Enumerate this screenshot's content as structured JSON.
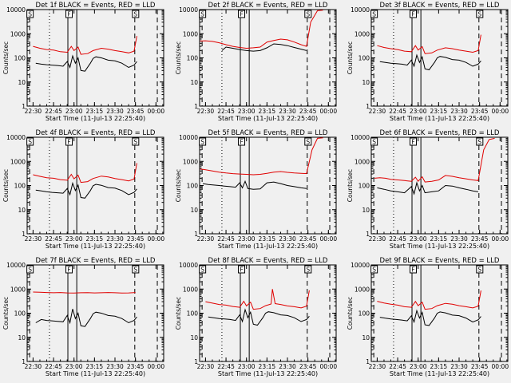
{
  "common": {
    "title_suffix": " BLACK = Events, RED = LLD",
    "xlabel": "Start Time (11-Jul-13 22:25:40)",
    "ylabel": "Counts/sec",
    "xticks": [
      "22:30",
      "22:45",
      "23:00",
      "23:15",
      "23:30",
      "23:45",
      "00:00"
    ],
    "yticks": [
      "1",
      "10",
      "100",
      "1000",
      "10000"
    ],
    "flags": {
      "start": "S",
      "middle": "F",
      "end": "S"
    },
    "colors": {
      "events": "#000000",
      "lld": "#e00000",
      "axes": "#000000",
      "background": "#f0f0f0"
    }
  },
  "chart_data": [
    {
      "type": "line",
      "title": "Det 1f BLACK = Events, RED = LLD",
      "xlabel": "Start Time (11-Jul-13 22:25:40)",
      "ylabel": "Counts/sec",
      "yscale": "log",
      "ylim": [
        1,
        10000
      ],
      "xlim": [
        "22:25:40",
        "00:05:40"
      ],
      "series": [
        {
          "name": "Events",
          "color": "#000000",
          "x": [
            "22:32",
            "22:36",
            "22:40",
            "22:44",
            "22:48",
            "22:52",
            "22:55",
            "22:57",
            "22:59",
            "23:01",
            "23:03",
            "23:05",
            "23:08",
            "23:12",
            "23:14",
            "23:16",
            "23:20",
            "23:25",
            "23:30",
            "23:35",
            "23:40",
            "23:44",
            "23:46"
          ],
          "values": [
            60,
            55,
            52,
            50,
            48,
            45,
            70,
            40,
            120,
            60,
            100,
            30,
            28,
            60,
            95,
            110,
            100,
            80,
            75,
            60,
            40,
            50,
            70
          ]
        },
        {
          "name": "LLD",
          "color": "#e00000",
          "x": [
            "22:30",
            "22:35",
            "22:40",
            "22:45",
            "22:50",
            "22:55",
            "22:58",
            "23:00",
            "23:03",
            "23:05",
            "23:10",
            "23:14",
            "23:20",
            "23:25",
            "23:30",
            "23:35",
            "23:40",
            "23:44",
            "23:46"
          ],
          "values": [
            300,
            250,
            220,
            210,
            180,
            170,
            300,
            200,
            280,
            140,
            150,
            200,
            250,
            230,
            200,
            180,
            160,
            190,
            800
          ]
        }
      ]
    },
    {
      "type": "line",
      "title": "Det 2f BLACK = Events, RED = LLD",
      "xlabel": "Start Time (11-Jul-13 22:25:40)",
      "ylabel": "Counts/sec",
      "yscale": "log",
      "ylim": [
        1,
        10000
      ],
      "xlim": [
        "22:25:40",
        "00:05:40"
      ],
      "series": [
        {
          "name": "Events",
          "color": "#000000",
          "x": [
            "22:42",
            "22:45",
            "22:50",
            "22:55",
            "23:00",
            "23:05",
            "23:10",
            "23:15",
            "23:20",
            "23:25",
            "23:30",
            "23:35",
            "23:40",
            "23:44"
          ],
          "values": [
            200,
            280,
            250,
            220,
            200,
            190,
            200,
            260,
            380,
            360,
            320,
            270,
            230,
            200
          ]
        },
        {
          "name": "LLD",
          "color": "#e00000",
          "x": [
            "22:26",
            "22:30",
            "22:35",
            "22:40",
            "22:45",
            "22:50",
            "22:55",
            "23:00",
            "23:05",
            "23:10",
            "23:15",
            "23:20",
            "23:25",
            "23:30",
            "23:35",
            "23:40",
            "23:44",
            "23:47",
            "23:52",
            "23:56"
          ],
          "values": [
            500,
            510,
            480,
            420,
            350,
            300,
            270,
            250,
            260,
            280,
            450,
            520,
            600,
            560,
            450,
            350,
            300,
            3000,
            9000,
            9500
          ]
        }
      ]
    },
    {
      "type": "line",
      "title": "Det 3f BLACK = Events, RED = LLD",
      "xlabel": "Start Time (11-Jul-13 22:25:40)",
      "ylabel": "Counts/sec",
      "yscale": "log",
      "ylim": [
        1,
        10000
      ],
      "xlim": [
        "22:25:40",
        "00:05:40"
      ],
      "series": [
        {
          "name": "Events",
          "color": "#000000",
          "x": [
            "22:32",
            "22:36",
            "22:40",
            "22:44",
            "22:48",
            "22:52",
            "22:55",
            "22:57",
            "22:59",
            "23:01",
            "23:03",
            "23:05",
            "23:08",
            "23:12",
            "23:14",
            "23:16",
            "23:20",
            "23:25",
            "23:30",
            "23:35",
            "23:40",
            "23:44",
            "23:46"
          ],
          "values": [
            70,
            65,
            60,
            58,
            55,
            50,
            80,
            45,
            130,
            65,
            110,
            35,
            32,
            65,
            100,
            115,
            105,
            85,
            80,
            65,
            45,
            55,
            75
          ]
        },
        {
          "name": "LLD",
          "color": "#e00000",
          "x": [
            "22:30",
            "22:35",
            "22:40",
            "22:45",
            "22:50",
            "22:55",
            "22:58",
            "23:00",
            "23:03",
            "23:05",
            "23:10",
            "23:14",
            "23:20",
            "23:25",
            "23:30",
            "23:35",
            "23:40",
            "23:44",
            "23:46"
          ],
          "values": [
            320,
            270,
            240,
            220,
            190,
            180,
            320,
            210,
            290,
            150,
            160,
            210,
            260,
            240,
            210,
            190,
            170,
            200,
            900
          ]
        }
      ]
    },
    {
      "type": "line",
      "title": "Det 4f BLACK = Events, RED = LLD",
      "xlabel": "Start Time (11-Jul-13 22:25:40)",
      "ylabel": "Counts/sec",
      "yscale": "log",
      "ylim": [
        1,
        10000
      ],
      "xlim": [
        "22:25:40",
        "00:05:40"
      ],
      "series": [
        {
          "name": "Events",
          "color": "#000000",
          "x": [
            "22:32",
            "22:36",
            "22:40",
            "22:44",
            "22:48",
            "22:52",
            "22:55",
            "22:57",
            "22:59",
            "23:01",
            "23:03",
            "23:05",
            "23:08",
            "23:12",
            "23:14",
            "23:16",
            "23:20",
            "23:25",
            "23:30",
            "23:35",
            "23:40",
            "23:44",
            "23:46"
          ],
          "values": [
            65,
            60,
            55,
            52,
            50,
            48,
            75,
            42,
            125,
            62,
            105,
            32,
            30,
            62,
            98,
            112,
            102,
            82,
            78,
            62,
            42,
            52,
            72
          ]
        },
        {
          "name": "LLD",
          "color": "#e00000",
          "x": [
            "22:30",
            "22:35",
            "22:40",
            "22:45",
            "22:50",
            "22:55",
            "22:58",
            "23:00",
            "23:03",
            "23:05",
            "23:10",
            "23:14",
            "23:20",
            "23:25",
            "23:30",
            "23:35",
            "23:40",
            "23:44",
            "23:46"
          ],
          "values": [
            280,
            240,
            210,
            200,
            175,
            165,
            290,
            190,
            270,
            135,
            145,
            195,
            245,
            225,
            195,
            175,
            155,
            185,
            850
          ]
        }
      ]
    },
    {
      "type": "line",
      "title": "Det 5f BLACK = Events, RED = LLD",
      "xlabel": "Start Time (11-Jul-13 22:25:40)",
      "ylabel": "Counts/sec",
      "yscale": "log",
      "ylim": [
        1,
        10000
      ],
      "xlim": [
        "22:25:40",
        "00:05:40"
      ],
      "series": [
        {
          "name": "Events",
          "color": "#000000",
          "x": [
            "22:28",
            "22:32",
            "22:36",
            "22:40",
            "22:44",
            "22:48",
            "22:52",
            "22:55",
            "22:57",
            "22:59",
            "23:01",
            "23:05",
            "23:10",
            "23:15",
            "23:20",
            "23:25",
            "23:30",
            "23:35",
            "23:40",
            "23:44"
          ],
          "values": [
            120,
            110,
            105,
            100,
            95,
            90,
            85,
            130,
            80,
            150,
            75,
            70,
            72,
            130,
            140,
            120,
            100,
            90,
            80,
            75
          ]
        },
        {
          "name": "LLD",
          "color": "#e00000",
          "x": [
            "22:26",
            "22:30",
            "22:35",
            "22:40",
            "22:45",
            "22:50",
            "22:55",
            "23:00",
            "23:05",
            "23:10",
            "23:15",
            "23:20",
            "23:25",
            "23:30",
            "23:35",
            "23:40",
            "23:44",
            "23:48",
            "23:52",
            "23:56"
          ],
          "values": [
            480,
            450,
            400,
            360,
            330,
            310,
            300,
            290,
            280,
            290,
            320,
            360,
            380,
            350,
            330,
            320,
            310,
            3000,
            9000,
            9500
          ]
        }
      ]
    },
    {
      "type": "line",
      "title": "Det 6f BLACK = Events, RED = LLD",
      "xlabel": "Start Time (11-Jul-13 22:25:40)",
      "ylabel": "Counts/sec",
      "yscale": "log",
      "ylim": [
        1,
        10000
      ],
      "xlim": [
        "22:25:40",
        "00:05:40"
      ],
      "series": [
        {
          "name": "Events",
          "color": "#000000",
          "x": [
            "22:30",
            "22:35",
            "22:40",
            "22:45",
            "22:50",
            "22:55",
            "22:57",
            "22:59",
            "23:01",
            "23:03",
            "23:05",
            "23:10",
            "23:15",
            "23:20",
            "23:25",
            "23:30",
            "23:35",
            "23:40",
            "23:44"
          ],
          "values": [
            80,
            70,
            60,
            55,
            50,
            90,
            45,
            130,
            60,
            100,
            50,
            55,
            60,
            100,
            95,
            80,
            70,
            60,
            55
          ]
        },
        {
          "name": "LLD",
          "color": "#e00000",
          "x": [
            "22:28",
            "22:32",
            "22:36",
            "22:40",
            "22:45",
            "22:50",
            "22:55",
            "22:58",
            "23:00",
            "23:03",
            "23:05",
            "23:10",
            "23:15",
            "23:20",
            "23:25",
            "23:30",
            "23:35",
            "23:40",
            "23:44",
            "23:48",
            "23:52",
            "23:56"
          ],
          "values": [
            200,
            210,
            200,
            180,
            170,
            160,
            150,
            220,
            150,
            230,
            140,
            150,
            170,
            260,
            240,
            210,
            190,
            170,
            160,
            3000,
            8000,
            9000
          ]
        }
      ]
    },
    {
      "type": "line",
      "title": "Det 7f BLACK = Events, RED = LLD",
      "xlabel": "Start Time (11-Jul-13 22:25:40)",
      "ylabel": "Counts/sec",
      "yscale": "log",
      "ylim": [
        1,
        10000
      ],
      "xlim": [
        "22:25:40",
        "00:05:40"
      ],
      "series": [
        {
          "name": "Events",
          "color": "#000000",
          "x": [
            "22:32",
            "22:36",
            "22:40",
            "22:44",
            "22:48",
            "22:52",
            "22:55",
            "22:57",
            "22:59",
            "23:01",
            "23:03",
            "23:05",
            "23:08",
            "23:12",
            "23:14",
            "23:16",
            "23:20",
            "23:25",
            "23:30",
            "23:35",
            "23:40",
            "23:44",
            "23:46"
          ],
          "values": [
            40,
            55,
            50,
            48,
            46,
            44,
            80,
            40,
            150,
            60,
            100,
            30,
            28,
            60,
            95,
            110,
            100,
            80,
            75,
            60,
            40,
            50,
            70
          ]
        },
        {
          "name": "LLD",
          "color": "#e00000",
          "x": [
            "22:30",
            "22:35",
            "22:40",
            "22:45",
            "22:50",
            "22:55",
            "23:00",
            "23:05",
            "23:10",
            "23:15",
            "23:20",
            "23:25",
            "23:30",
            "23:35",
            "23:40",
            "23:45"
          ],
          "values": [
            750,
            740,
            720,
            700,
            720,
            690,
            680,
            700,
            710,
            690,
            700,
            720,
            700,
            680,
            690,
            720
          ]
        }
      ]
    },
    {
      "type": "line",
      "title": "Det 8f BLACK = Events, RED = LLD",
      "xlabel": "Start Time (11-Jul-13 22:25:40)",
      "ylabel": "Counts/sec",
      "yscale": "log",
      "ylim": [
        1,
        10000
      ],
      "xlim": [
        "22:25:40",
        "00:05:40"
      ],
      "series": [
        {
          "name": "Events",
          "color": "#000000",
          "x": [
            "22:32",
            "22:36",
            "22:40",
            "22:44",
            "22:48",
            "22:52",
            "22:55",
            "22:57",
            "22:59",
            "23:01",
            "23:03",
            "23:05",
            "23:08",
            "23:12",
            "23:14",
            "23:16",
            "23:20",
            "23:25",
            "23:30",
            "23:35",
            "23:40",
            "23:44",
            "23:46"
          ],
          "values": [
            70,
            65,
            60,
            58,
            55,
            50,
            85,
            45,
            140,
            65,
            110,
            35,
            32,
            65,
            100,
            115,
            105,
            85,
            80,
            65,
            45,
            55,
            75
          ]
        },
        {
          "name": "LLD",
          "color": "#e00000",
          "x": [
            "22:30",
            "22:35",
            "22:40",
            "22:45",
            "22:50",
            "22:55",
            "22:58",
            "23:00",
            "23:03",
            "23:05",
            "23:10",
            "23:14",
            "23:18",
            "23:19",
            "23:21",
            "23:25",
            "23:30",
            "23:35",
            "23:40",
            "23:44",
            "23:46"
          ],
          "values": [
            300,
            260,
            230,
            215,
            190,
            175,
            310,
            200,
            285,
            145,
            155,
            205,
            240,
            1000,
            250,
            230,
            200,
            185,
            165,
            195,
            880
          ]
        }
      ]
    },
    {
      "type": "line",
      "title": "Det 9f BLACK = Events, RED = LLD",
      "xlabel": "Start Time (11-Jul-13 22:25:40)",
      "ylabel": "Counts/sec",
      "yscale": "log",
      "ylim": [
        1,
        10000
      ],
      "xlim": [
        "22:25:40",
        "00:05:40"
      ],
      "series": [
        {
          "name": "Events",
          "color": "#000000",
          "x": [
            "22:32",
            "22:36",
            "22:40",
            "22:44",
            "22:48",
            "22:52",
            "22:55",
            "22:57",
            "22:59",
            "23:01",
            "23:03",
            "23:05",
            "23:08",
            "23:12",
            "23:14",
            "23:16",
            "23:20",
            "23:25",
            "23:30",
            "23:35",
            "23:40",
            "23:44",
            "23:46"
          ],
          "values": [
            68,
            62,
            58,
            55,
            52,
            48,
            78,
            43,
            128,
            63,
            108,
            33,
            31,
            63,
            99,
            113,
            103,
            83,
            79,
            63,
            43,
            53,
            73
          ]
        },
        {
          "name": "LLD",
          "color": "#e00000",
          "x": [
            "22:30",
            "22:35",
            "22:40",
            "22:45",
            "22:50",
            "22:55",
            "22:58",
            "23:00",
            "23:03",
            "23:05",
            "23:10",
            "23:14",
            "23:20",
            "23:25",
            "23:30",
            "23:35",
            "23:40",
            "23:44",
            "23:46"
          ],
          "values": [
            310,
            265,
            235,
            215,
            185,
            175,
            305,
            205,
            285,
            145,
            155,
            205,
            255,
            235,
            205,
            185,
            165,
            195,
            870
          ]
        }
      ]
    }
  ]
}
